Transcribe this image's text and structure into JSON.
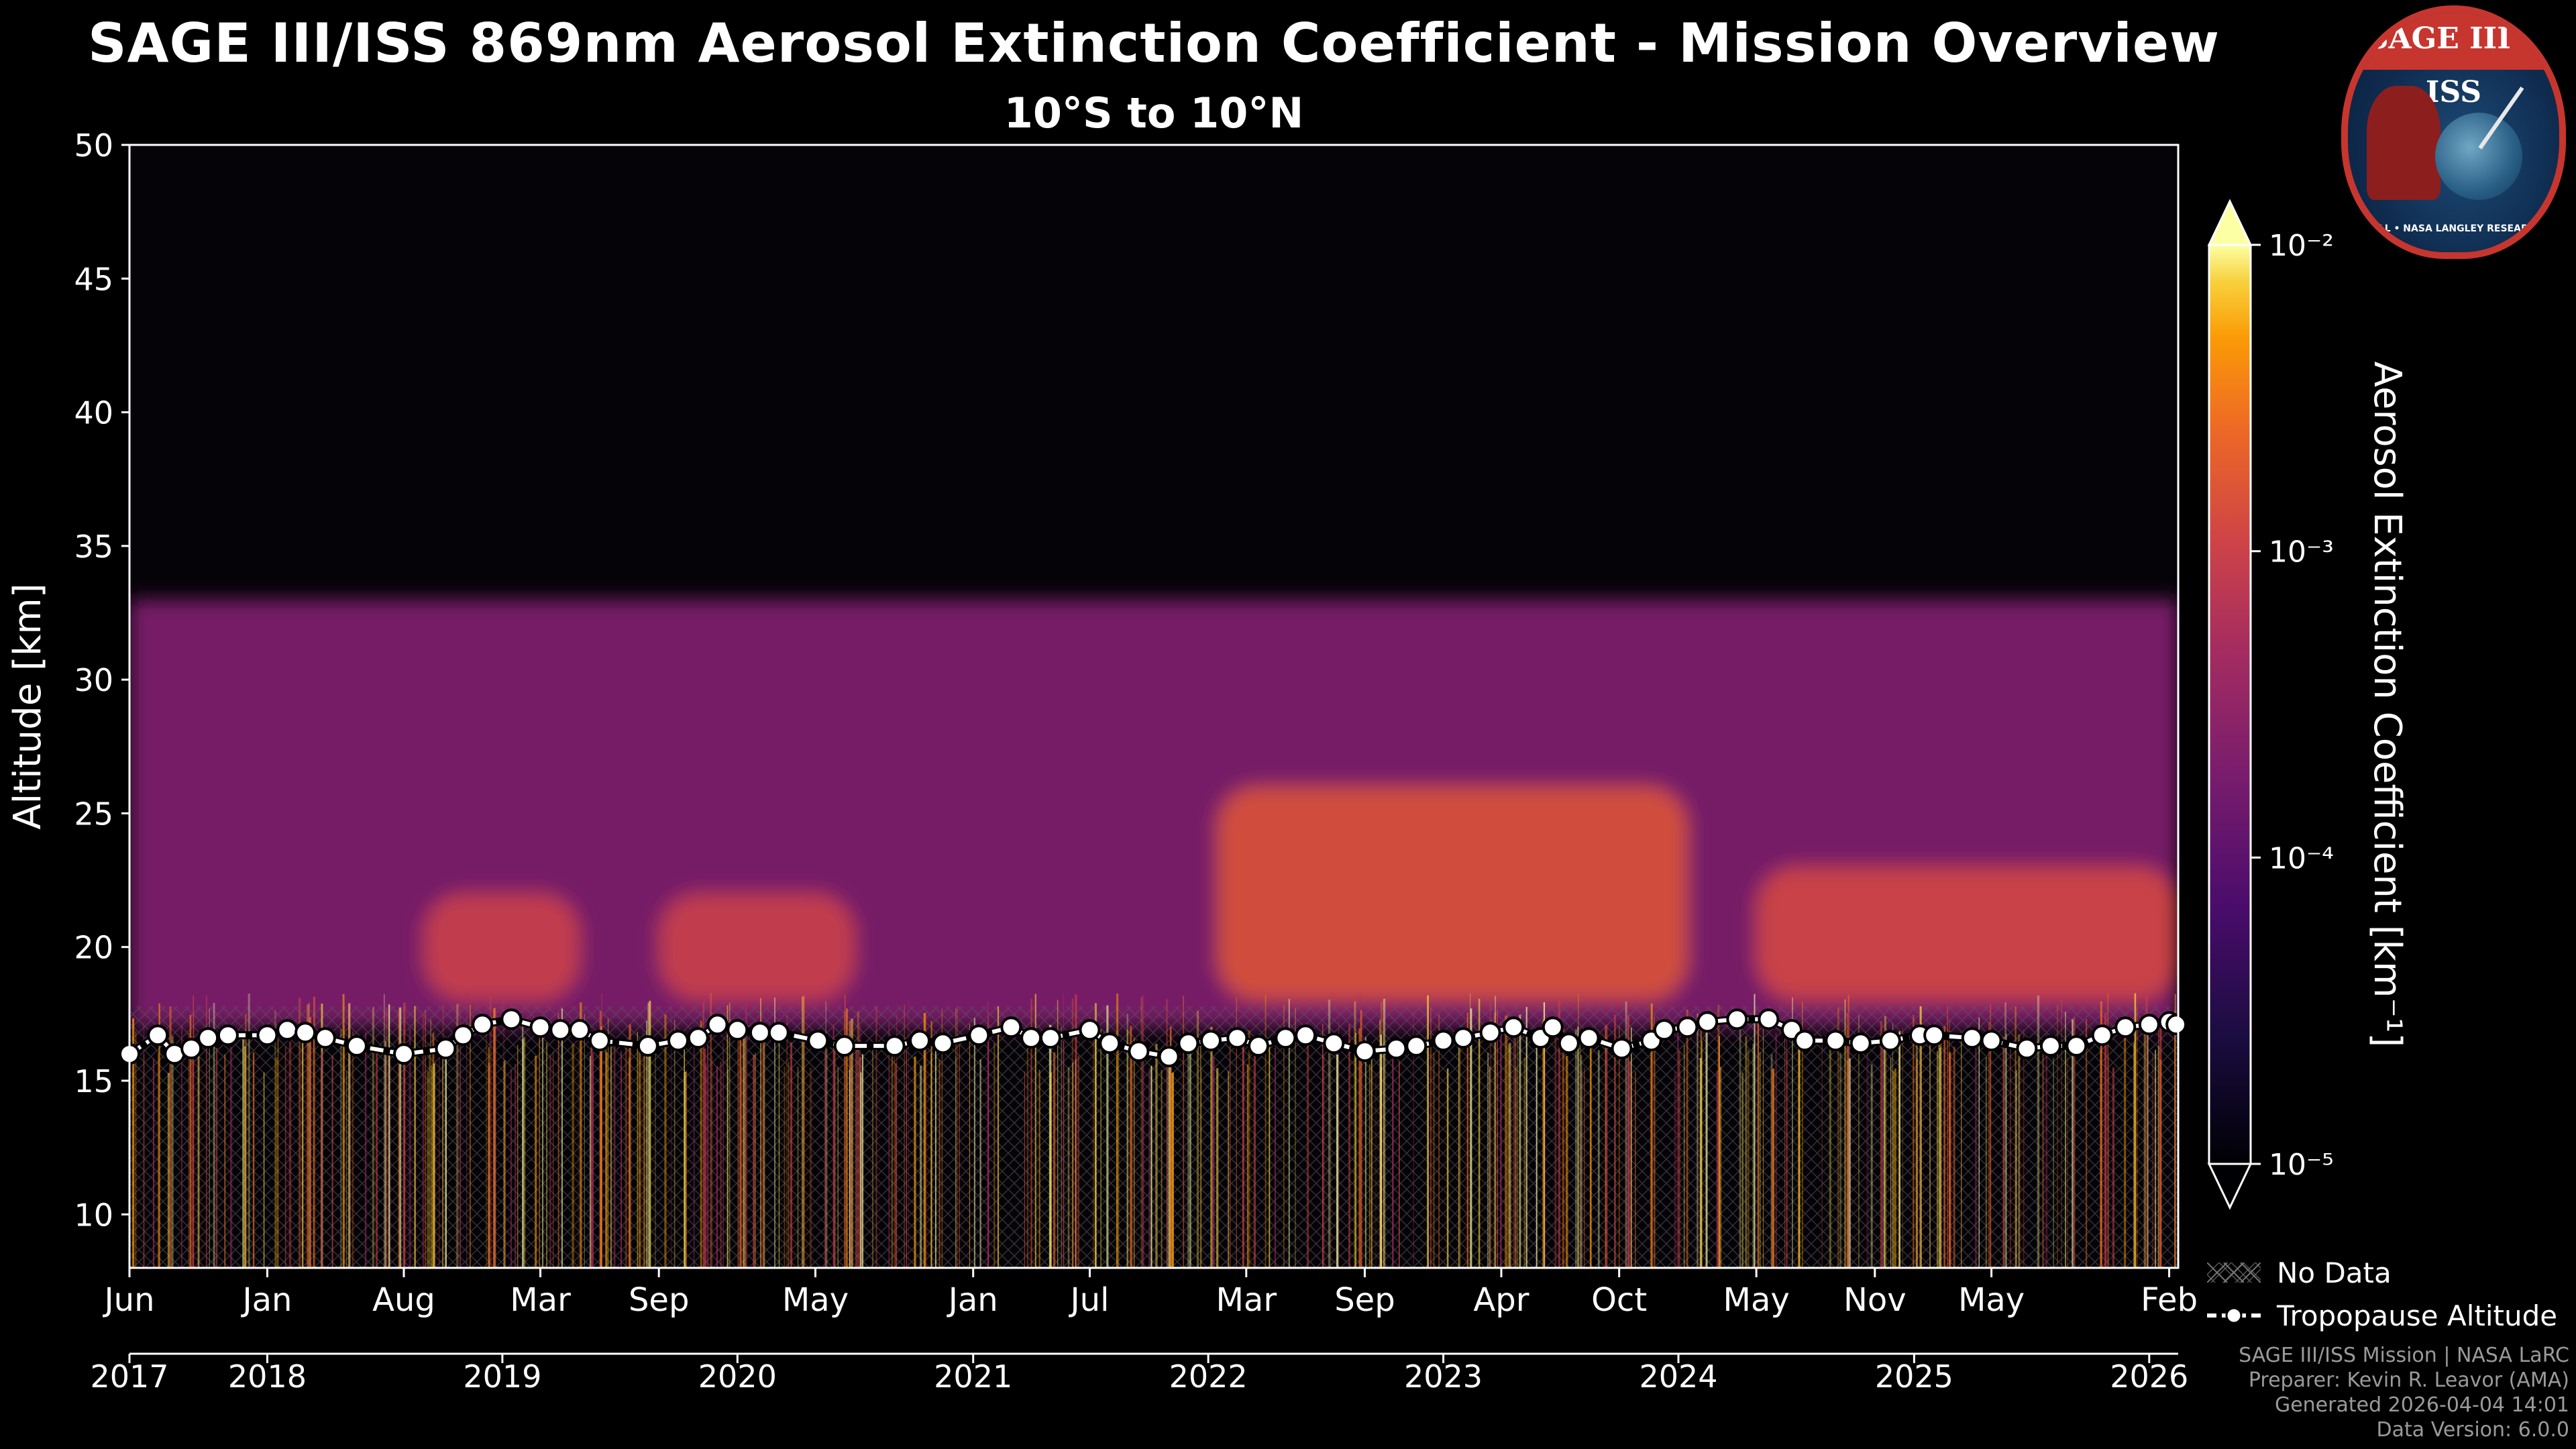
{
  "title": "SAGE III/ISS 869nm Aerosol Extinction Coefficient - Mission Overview",
  "subtitle": "10°S to 10°N",
  "badge": {
    "top_text": "SAGE III • ISS",
    "ring_text": "BALL • NASA LANGLEY RESEARCH CENTER • TAS-I • ESA"
  },
  "legend": {
    "no_data": "No Data",
    "tropopause": "Tropopause Altitude"
  },
  "footer": {
    "line1": "SAGE III/ISS Mission | NASA LaRC",
    "line2": "Preparer: Kevin R. Leavor (AMA)",
    "line3": "Generated 2026-04-04 14:01",
    "line4": "Data Version: 6.0.0"
  },
  "colors": {
    "background": "#000000",
    "tropopause_marker": "#ffffff",
    "colormap": "inferno"
  },
  "chart_data": {
    "type": "heatmap",
    "title": "SAGE III/ISS 869nm Aerosol Extinction Coefficient - Mission Overview",
    "subtitle": "10°S to 10°N",
    "ylabel": "Altitude [km]",
    "ylim": [
      8,
      50
    ],
    "yticks": [
      10,
      15,
      20,
      25,
      30,
      35,
      40,
      45,
      50
    ],
    "xlim": [
      "2017-06-01",
      "2026-02-15"
    ],
    "month_ticks": [
      {
        "label": "Jun",
        "date": "2017-06-01"
      },
      {
        "label": "Jan",
        "date": "2018-01-01"
      },
      {
        "label": "Aug",
        "date": "2018-08-01"
      },
      {
        "label": "Mar",
        "date": "2019-03-01"
      },
      {
        "label": "Sep",
        "date": "2019-09-01"
      },
      {
        "label": "May",
        "date": "2020-05-01"
      },
      {
        "label": "Jan",
        "date": "2021-01-01"
      },
      {
        "label": "Jul",
        "date": "2021-07-01"
      },
      {
        "label": "Mar",
        "date": "2022-03-01"
      },
      {
        "label": "Sep",
        "date": "2022-09-01"
      },
      {
        "label": "Apr",
        "date": "2023-04-01"
      },
      {
        "label": "Oct",
        "date": "2023-10-01"
      },
      {
        "label": "May",
        "date": "2024-05-01"
      },
      {
        "label": "Nov",
        "date": "2024-11-01"
      },
      {
        "label": "May",
        "date": "2025-05-01"
      },
      {
        "label": "Feb",
        "date": "2026-02-01"
      }
    ],
    "year_ticks": [
      {
        "label": "2017",
        "date": "2017-06-01"
      },
      {
        "label": "2018",
        "date": "2018-01-01"
      },
      {
        "label": "2019",
        "date": "2019-01-01"
      },
      {
        "label": "2020",
        "date": "2020-01-01"
      },
      {
        "label": "2021",
        "date": "2021-01-01"
      },
      {
        "label": "2022",
        "date": "2022-01-01"
      },
      {
        "label": "2023",
        "date": "2023-01-01"
      },
      {
        "label": "2024",
        "date": "2024-01-01"
      },
      {
        "label": "2025",
        "date": "2025-01-01"
      },
      {
        "label": "2026",
        "date": "2026-01-01"
      }
    ],
    "colorbar": {
      "label": "Aerosol Extinction Coefficient [km⁻¹]",
      "scale": "log",
      "range": [
        1e-05,
        0.01
      ],
      "ticks": [
        {
          "label": "10⁻⁵",
          "value": 1e-05
        },
        {
          "label": "10⁻⁴",
          "value": 0.0001
        },
        {
          "label": "10⁻³",
          "value": 0.001
        },
        {
          "label": "10⁻²",
          "value": 0.01
        }
      ],
      "extend": "both"
    },
    "features": [
      {
        "name": "Stratospheric aerosol layer",
        "date_range": [
          "2017-06-01",
          "2026-02-15"
        ],
        "altitude_km": [
          17,
          33
        ],
        "extinction": 0.0002
      },
      {
        "name": "Enhanced layer",
        "date_range": [
          "2018-09-01",
          "2019-05-01"
        ],
        "altitude_km": [
          18,
          22
        ],
        "extinction": 0.001
      },
      {
        "name": "Enhanced layer",
        "date_range": [
          "2019-09-01",
          "2020-07-01"
        ],
        "altitude_km": [
          18,
          22
        ],
        "extinction": 0.001
      },
      {
        "name": "Enhanced layer",
        "date_range": [
          "2022-01-15",
          "2024-01-15"
        ],
        "altitude_km": [
          18,
          26
        ],
        "extinction": 0.0015
      },
      {
        "name": "Enhanced layer",
        "date_range": [
          "2024-05-01",
          "2026-02-15"
        ],
        "altitude_km": [
          18,
          23
        ],
        "extinction": 0.0012
      }
    ],
    "tropopause_series": {
      "name": "Tropopause Altitude",
      "dates": [
        "2017-06-01",
        "2017-07-15",
        "2017-08-10",
        "2017-09-05",
        "2017-10-01",
        "2017-11-01",
        "2018-01-01",
        "2018-02-01",
        "2018-03-01",
        "2018-04-01",
        "2018-05-20",
        "2018-08-01",
        "2018-10-05",
        "2018-11-01",
        "2018-12-01",
        "2019-01-15",
        "2019-03-01",
        "2019-04-01",
        "2019-05-01",
        "2019-06-01",
        "2019-08-15",
        "2019-10-01",
        "2019-11-01",
        "2019-12-01",
        "2020-01-01",
        "2020-02-05",
        "2020-03-05",
        "2020-05-05",
        "2020-06-15",
        "2020-09-01",
        "2020-10-10",
        "2020-11-15",
        "2021-01-10",
        "2021-03-01",
        "2021-04-01",
        "2021-05-01",
        "2021-07-01",
        "2021-08-01",
        "2021-09-15",
        "2021-11-01",
        "2021-12-01",
        "2022-01-05",
        "2022-02-15",
        "2022-03-20",
        "2022-05-01",
        "2022-06-01",
        "2022-07-15",
        "2022-09-01",
        "2022-10-20",
        "2022-11-20",
        "2023-01-01",
        "2023-02-01",
        "2023-03-15",
        "2023-04-20",
        "2023-06-01",
        "2023-06-20",
        "2023-07-15",
        "2023-08-15",
        "2023-10-05",
        "2023-11-20",
        "2023-12-10",
        "2024-01-15",
        "2024-02-15",
        "2024-04-01",
        "2024-05-20",
        "2024-06-25",
        "2024-07-15",
        "2024-09-01",
        "2024-10-10",
        "2024-11-25",
        "2025-01-10",
        "2025-02-01",
        "2025-04-01",
        "2025-05-01",
        "2025-06-25",
        "2025-08-01",
        "2025-09-10",
        "2025-10-20",
        "2025-11-25",
        "2026-01-01",
        "2026-02-01",
        "2026-02-12"
      ],
      "values": [
        16.0,
        16.7,
        16.0,
        16.2,
        16.6,
        16.7,
        16.7,
        16.9,
        16.8,
        16.6,
        16.3,
        16.0,
        16.2,
        16.7,
        17.1,
        17.3,
        17.0,
        16.9,
        16.9,
        16.5,
        16.3,
        16.5,
        16.6,
        17.1,
        16.9,
        16.8,
        16.8,
        16.5,
        16.3,
        16.3,
        16.5,
        16.4,
        16.7,
        17.0,
        16.6,
        16.6,
        16.9,
        16.4,
        16.1,
        15.9,
        16.4,
        16.5,
        16.6,
        16.3,
        16.6,
        16.7,
        16.4,
        16.1,
        16.2,
        16.3,
        16.5,
        16.6,
        16.8,
        17.0,
        16.6,
        17.0,
        16.4,
        16.6,
        16.2,
        16.5,
        16.9,
        17.0,
        17.2,
        17.3,
        17.3,
        16.9,
        16.5,
        16.5,
        16.4,
        16.5,
        16.7,
        16.7,
        16.6,
        16.5,
        16.2,
        16.3,
        16.3,
        16.7,
        17.0,
        17.1,
        17.2,
        17.1
      ]
    }
  }
}
